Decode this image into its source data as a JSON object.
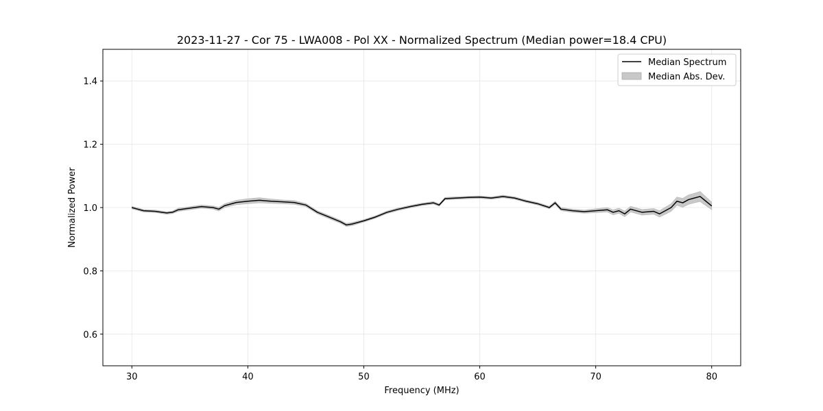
{
  "chart_data": {
    "type": "line",
    "title": "2023-11-27 - Cor 75 - LWA008 - Pol XX - Normalized Spectrum (Median power=18.4 CPU)",
    "xlabel": "Frequency (MHz)",
    "ylabel": "Normalized Power",
    "xlim": [
      27.5,
      82.5
    ],
    "ylim": [
      0.5,
      1.5
    ],
    "xticks": [
      30,
      40,
      50,
      60,
      70,
      80
    ],
    "yticks": [
      0.6,
      0.8,
      1.0,
      1.2,
      1.4
    ],
    "xtick_labels": [
      "30",
      "40",
      "50",
      "60",
      "70",
      "80"
    ],
    "ytick_labels": [
      "0.6",
      "0.8",
      "1.0",
      "1.2",
      "1.4"
    ],
    "grid": true,
    "legend": {
      "placement": "top-right",
      "entries": [
        "Median Spectrum",
        "Median Abs. Dev."
      ]
    },
    "series": [
      {
        "name": "Median Spectrum",
        "color": "#000000",
        "x": [
          30,
          30.5,
          31,
          32,
          33,
          33.5,
          34,
          35,
          36,
          37,
          37.5,
          38,
          39,
          40,
          41,
          42,
          43,
          44,
          45,
          46,
          47,
          48,
          48.5,
          49,
          50,
          51,
          52,
          53,
          54,
          55,
          56,
          56.5,
          57,
          58,
          59,
          60,
          61,
          62,
          63,
          64,
          65,
          66,
          66.5,
          67,
          68,
          69,
          70,
          71,
          71.5,
          72,
          72.5,
          73,
          74,
          75,
          75.5,
          76,
          76.5,
          77,
          77.5,
          78,
          78.5,
          79,
          79.5,
          80
        ],
        "y": [
          1.0,
          0.995,
          0.99,
          0.988,
          0.983,
          0.985,
          0.993,
          0.998,
          1.003,
          1.0,
          0.995,
          1.006,
          1.016,
          1.02,
          1.023,
          1.02,
          1.018,
          1.016,
          1.008,
          0.985,
          0.97,
          0.955,
          0.945,
          0.948,
          0.958,
          0.97,
          0.985,
          0.995,
          1.003,
          1.01,
          1.015,
          1.008,
          1.028,
          1.03,
          1.032,
          1.033,
          1.03,
          1.035,
          1.03,
          1.02,
          1.012,
          1.0,
          1.015,
          0.995,
          0.99,
          0.987,
          0.99,
          0.993,
          0.985,
          0.99,
          0.98,
          0.995,
          0.985,
          0.988,
          0.98,
          0.99,
          1.0,
          1.02,
          1.015,
          1.025,
          1.03,
          1.035,
          1.02,
          1.005
        ]
      },
      {
        "name": "Median Abs. Dev.",
        "color": "#c8c8c8",
        "x": [
          30,
          30.5,
          31,
          32,
          33,
          33.5,
          34,
          35,
          36,
          37,
          37.5,
          38,
          39,
          40,
          41,
          42,
          43,
          44,
          45,
          46,
          47,
          48,
          48.5,
          49,
          50,
          51,
          52,
          53,
          54,
          55,
          56,
          56.5,
          57,
          58,
          59,
          60,
          61,
          62,
          63,
          64,
          65,
          66,
          66.5,
          67,
          68,
          69,
          70,
          71,
          71.5,
          72,
          72.5,
          73,
          74,
          75,
          75.5,
          76,
          76.5,
          77,
          77.5,
          78,
          78.5,
          79,
          79.5,
          80
        ],
        "dev": [
          0.004,
          0.004,
          0.004,
          0.004,
          0.004,
          0.004,
          0.005,
          0.005,
          0.005,
          0.005,
          0.006,
          0.006,
          0.007,
          0.008,
          0.008,
          0.007,
          0.006,
          0.006,
          0.005,
          0.005,
          0.005,
          0.005,
          0.005,
          0.005,
          0.004,
          0.004,
          0.004,
          0.004,
          0.004,
          0.004,
          0.004,
          0.004,
          0.004,
          0.004,
          0.004,
          0.004,
          0.004,
          0.004,
          0.004,
          0.004,
          0.004,
          0.004,
          0.005,
          0.005,
          0.005,
          0.005,
          0.006,
          0.007,
          0.008,
          0.008,
          0.009,
          0.009,
          0.009,
          0.009,
          0.01,
          0.011,
          0.012,
          0.013,
          0.014,
          0.015,
          0.015,
          0.016,
          0.014,
          0.012
        ]
      }
    ]
  }
}
